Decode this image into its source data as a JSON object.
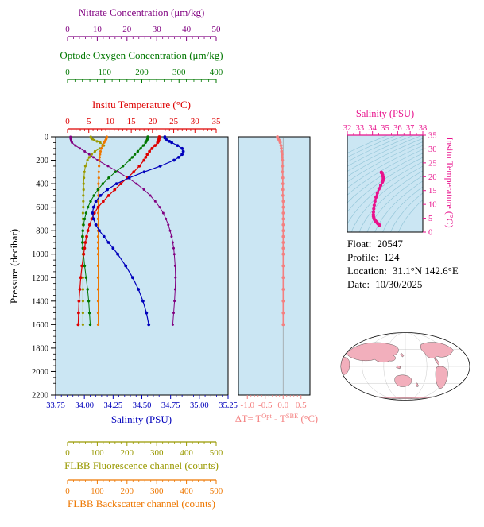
{
  "colors": {
    "nitrate": "#800080",
    "oxygen": "#007700",
    "temperature": "#DD0000",
    "salinity": "#0000BB",
    "fluorescence": "#999900",
    "backscatter": "#EE7700",
    "delta_t": "#F48080",
    "ts_curve": "#E8128C",
    "pressure": "#000000",
    "plot_bg": "#CBE6F3",
    "contour": "#8FC3D6",
    "map_land": "#F2AFBC",
    "map_ocean": "#FFFFFF"
  },
  "axes": {
    "nitrate": {
      "title": "Nitrate Concentration (μm/kg)",
      "min": 0,
      "max": 50,
      "ticks": [
        0,
        10,
        20,
        30,
        40,
        50
      ]
    },
    "oxygen": {
      "title": "Optode Oxygen Concentration (μm/kg)",
      "min": 0,
      "max": 400,
      "ticks": [
        0,
        100,
        200,
        300,
        400
      ]
    },
    "temperature": {
      "title": "Insitu Temperature (°C)",
      "min": 0,
      "max": 35,
      "ticks": [
        0,
        5,
        10,
        15,
        20,
        25,
        30,
        35
      ]
    },
    "salinity": {
      "title": "Salinity (PSU)",
      "min": 33.75,
      "max": 35.25,
      "ticks": [
        "33.75",
        "34.00",
        "34.25",
        "34.50",
        "34.75",
        "35.00",
        "35.25"
      ]
    },
    "fluorescence": {
      "title": "FLBB Fluorescence channel (counts)",
      "min": 0,
      "max": 500,
      "ticks": [
        0,
        100,
        200,
        300,
        400,
        500
      ]
    },
    "backscatter": {
      "title": "FLBB Backscatter channel (counts)",
      "min": 0,
      "max": 500,
      "ticks": [
        0,
        100,
        200,
        300,
        400,
        500
      ]
    },
    "pressure": {
      "title": "Pressure (decibar)",
      "min": 0,
      "max": 2200,
      "ticks": [
        0,
        200,
        400,
        600,
        800,
        1000,
        1200,
        1400,
        1600,
        1800,
        2000,
        2200
      ]
    },
    "delta_t": {
      "min": -1.25,
      "max": 0.75,
      "ticks": [
        "-1.0",
        "-0.5",
        "0.0",
        "0.5"
      ]
    },
    "ts_salinity": {
      "title": "Salinity (PSU)",
      "min": 32,
      "max": 38,
      "ticks": [
        32,
        33,
        34,
        35,
        36,
        37,
        38
      ]
    },
    "ts_temperature": {
      "title": "Insitu Temperature (°C)",
      "min": 0,
      "max": 35,
      "ticks": [
        0,
        5,
        10,
        15,
        20,
        25,
        30,
        35
      ]
    }
  },
  "delta_t_label": {
    "p1": "ΔT= T",
    "sup1": "Opt",
    "p2": " - T",
    "sup2": "SBE",
    "p3": " (°C)"
  },
  "info": {
    "rows": [
      {
        "label": "Float:",
        "value": "20547"
      },
      {
        "label": "Profile:",
        "value": "124"
      },
      {
        "label": "Location:",
        "value": "31.1°N 142.6°E"
      },
      {
        "label": "Date:",
        "value": "10/30/2025"
      }
    ]
  },
  "chart_data": [
    {
      "type": "line",
      "name": "vertical-profiles-vs-pressure",
      "ylabel": "Pressure (decibar)",
      "ylim": [
        0,
        2200
      ],
      "y_axis_inverted": true,
      "pressure_dbar": [
        0,
        10,
        20,
        30,
        40,
        50,
        75,
        100,
        125,
        150,
        175,
        200,
        250,
        300,
        350,
        400,
        450,
        500,
        550,
        600,
        650,
        700,
        750,
        800,
        850,
        900,
        950,
        1000,
        1100,
        1200,
        1300,
        1400,
        1500,
        1600
      ],
      "series": [
        {
          "name": "Insitu Temperature (°C)",
          "axis": "temperature",
          "values": [
            21.6,
            21.6,
            21.5,
            21.5,
            21.4,
            21.2,
            20.6,
            19.9,
            19.3,
            18.8,
            18.4,
            18.0,
            16.9,
            15.6,
            14.1,
            12.6,
            11.1,
            9.7,
            8.4,
            7.2,
            6.3,
            5.7,
            5.2,
            4.8,
            4.5,
            4.2,
            4.0,
            3.8,
            3.4,
            3.1,
            2.9,
            2.7,
            2.6,
            2.5
          ]
        },
        {
          "name": "Salinity (PSU)",
          "axis": "salinity",
          "values": [
            34.7,
            34.7,
            34.71,
            34.72,
            34.74,
            34.76,
            34.81,
            34.85,
            34.86,
            34.85,
            34.82,
            34.78,
            34.66,
            34.52,
            34.39,
            34.28,
            34.2,
            34.14,
            34.1,
            34.08,
            34.07,
            34.08,
            34.1,
            34.13,
            34.17,
            34.21,
            34.25,
            34.29,
            34.36,
            34.42,
            34.47,
            34.51,
            34.54,
            34.56
          ]
        },
        {
          "name": "Optode Oxygen Concentration (μm/kg)",
          "axis": "oxygen",
          "values": [
            216,
            216,
            215,
            214,
            212,
            210,
            204,
            197,
            189,
            181,
            174,
            167,
            149,
            129,
            111,
            95,
            82,
            71,
            62,
            55,
            50,
            46,
            43,
            41,
            40,
            40,
            41,
            43,
            46,
            50,
            54,
            57,
            59,
            61
          ]
        },
        {
          "name": "Nitrate Concentration (μm/kg)",
          "axis": "nitrate",
          "values": [
            1.0,
            1.0,
            1.1,
            1.2,
            1.3,
            1.5,
            2.6,
            4.2,
            5.8,
            7.3,
            8.7,
            10.1,
            13.6,
            17.0,
            20.3,
            23.2,
            25.7,
            27.8,
            29.5,
            31.0,
            32.2,
            33.1,
            33.9,
            34.5,
            35.0,
            35.4,
            35.7,
            35.9,
            36.2,
            36.3,
            36.2,
            36.0,
            35.7,
            35.4
          ]
        },
        {
          "name": "FLBB Fluorescence channel (counts)",
          "axis": "fluorescence",
          "values": [
            78,
            80,
            84,
            90,
            99,
            110,
            122,
            108,
            92,
            81,
            73,
            67,
            60,
            57,
            55,
            54,
            54,
            53,
            53,
            53,
            52,
            52,
            52,
            52,
            52,
            52,
            52,
            52,
            52,
            52,
            52,
            52,
            52,
            52
          ]
        },
        {
          "name": "FLBB Backscatter channel (counts)",
          "axis": "backscatter",
          "values": [
            132,
            131,
            130,
            128,
            126,
            123,
            118,
            114,
            111,
            109,
            108,
            107,
            106,
            105,
            105,
            104,
            104,
            104,
            103,
            103,
            103,
            103,
            103,
            103,
            103,
            103,
            103,
            103,
            103,
            103,
            103,
            103,
            103,
            103
          ]
        }
      ]
    },
    {
      "type": "line",
      "name": "optode-minus-sbe-temperature-difference",
      "xlabel": "ΔT= TOpt - TSBE (°C)",
      "xlim": [
        -1.0,
        0.5
      ],
      "axis": "delta_t",
      "values": [
        -0.16,
        -0.15,
        -0.13,
        -0.11,
        -0.09,
        -0.08,
        -0.06,
        -0.05,
        -0.04,
        -0.03,
        -0.03,
        -0.02,
        -0.02,
        -0.02,
        -0.01,
        -0.01,
        -0.01,
        -0.01,
        0.0,
        0.0,
        0.0,
        0.0,
        0.0,
        0.0,
        0.0,
        0.0,
        0.0,
        0.0,
        0.0,
        0.0,
        0.0,
        0.0,
        0.0,
        0.0
      ]
    },
    {
      "type": "line",
      "name": "ts-diagram",
      "xlabel": "Salinity (PSU)",
      "ylabel": "Insitu Temperature (°C)",
      "xlim": [
        32,
        38
      ],
      "ylim": [
        0,
        35
      ],
      "source": "salinity-vs-temperature pairs from profile series",
      "density_contours_sigma": [
        20,
        20.5,
        21,
        21.5,
        22,
        22.5,
        23,
        23.5,
        24,
        24.5,
        25,
        25.5,
        26,
        26.5,
        27,
        27.5,
        28,
        28.5,
        29
      ]
    }
  ]
}
